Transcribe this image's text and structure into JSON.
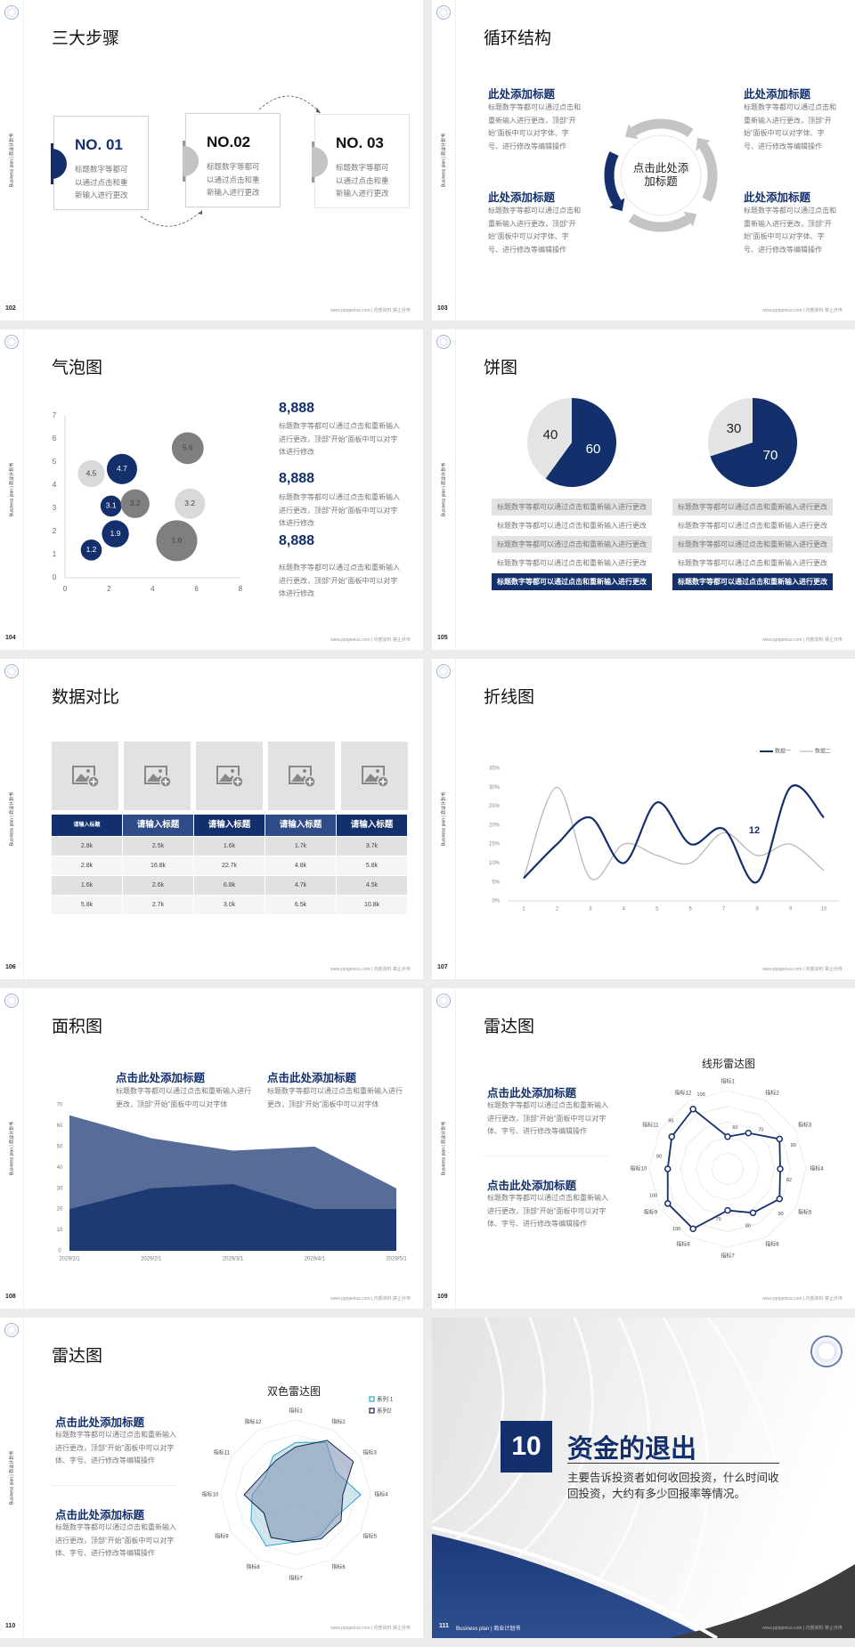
{
  "common": {
    "side_label": "Business plan | 商业计划书",
    "footer": "www.pptgenius.com | 内部资料 禁止外传"
  },
  "colors": {
    "navy": "#13306c",
    "mid_blue": "#2f4c87",
    "gray": "#7f7f7f",
    "light_gray": "#d9d9d9",
    "page_bg": "#ececec"
  },
  "s102": {
    "page": "102",
    "title": "三大步骤",
    "steps": [
      {
        "no": "NO. 01",
        "text": "标题数字等都可以通过点击和重新输入进行更改"
      },
      {
        "no": "NO.02",
        "text": "标题数字等都可以通过点击和重新输入进行更改"
      },
      {
        "no": "NO. 03",
        "text": "标题数字等都可以通过点击和重新输入进行更改"
      }
    ]
  },
  "s103": {
    "page": "103",
    "title": "循环结构",
    "center": "点击此处添加标题",
    "blocks": [
      {
        "heading": "此处添加标题",
        "text": "标题数字等都可以通过点击和重新输入进行更改，顶部“开始”面板中可以对字体、字号、进行修改等编辑操作"
      },
      {
        "heading": "此处添加标题",
        "text": "标题数字等都可以通过点击和重新输入进行更改，顶部“开始”面板中可以对字体、字号、进行修改等编辑操作"
      },
      {
        "heading": "此处添加标题",
        "text": "标题数字等都可以通过点击和重新输入进行更改，顶部“开始”面板中可以对字体、字号、进行修改等编辑操作"
      },
      {
        "heading": "此处添加标题",
        "text": "标题数字等都可以通过点击和重新输入进行更改，顶部“开始”面板中可以对字体、字号、进行修改等编辑操作"
      }
    ]
  },
  "s104": {
    "page": "104",
    "title": "气泡图",
    "stats": [
      {
        "value": "8,888",
        "text": "标题数字等都可以通过点击和重新输入进行更改，顶部“开始”面板中可以对字体进行修改"
      },
      {
        "value": "8,888",
        "text": "标题数字等都可以通过点击和重新输入进行更改，顶部“开始”面板中可以对字体进行修改"
      },
      {
        "value": "8,888",
        "text": "标题数字等都可以通过点击和重新输入进行更改，顶部“开始”面板中可以对字体进行修改"
      }
    ]
  },
  "s105": {
    "page": "105",
    "title": "饼图",
    "rows_left": [
      "标题数字等都可以通过点击和重新输入进行更改",
      "标题数字等都可以通过点击和重新输入进行更改",
      "标题数字等都可以通过点击和重新输入进行更改",
      "标题数字等都可以通过点击和重新输入进行更改",
      "标题数字等都可以通过点击和重新输入进行更改"
    ],
    "rows_right": [
      "标题数字等都可以通过点击和重新输入进行更改",
      "标题数字等都可以通过点击和重新输入进行更改",
      "标题数字等都可以通过点击和重新输入进行更改",
      "标题数字等都可以通过点击和重新输入进行更改",
      "标题数字等都可以通过点击和重新输入进行更改"
    ]
  },
  "s106": {
    "page": "106",
    "title": "数据对比",
    "headers": [
      "请输入标题",
      "请输入标题",
      "请输入标题",
      "请输入标题",
      "请输入标题"
    ],
    "rows": [
      [
        "2.8k",
        "2.5k",
        "1.6k",
        "1.7k",
        "3.7k"
      ],
      [
        "2.8k",
        "16.8k",
        "22.7k",
        "4.8k",
        "5.8k"
      ],
      [
        "1.6k",
        "2.6k",
        "6.8k",
        "4.7k",
        "4.5k"
      ],
      [
        "5.8k",
        "2.7k",
        "3.0k",
        "6.5k",
        "10.8k"
      ]
    ]
  },
  "s107": {
    "page": "107",
    "title": "折线图"
  },
  "s108": {
    "page": "108",
    "title": "面积图",
    "blocks": [
      {
        "heading": "点击此处添加标题",
        "text": "标题数字等都可以通过点击和重新输入进行更改，顶部“开始”面板中可以对字体"
      },
      {
        "heading": "点击此处添加标题",
        "text": "标题数字等都可以通过点击和重新输入进行更改，顶部“开始”面板中可以对字体"
      }
    ]
  },
  "s109": {
    "page": "109",
    "title": "雷达图",
    "blocks": [
      {
        "heading": "点击此处添加标题",
        "text": "标题数字等都可以通过点击和重新输入进行更改，顶部“开始”面板中可以对字体、字号、进行修改等编辑操作"
      },
      {
        "heading": "点击此处添加标题",
        "text": "标题数字等都可以通过点击和重新输入进行更改，顶部“开始”面板中可以对字体、字号、进行修改等编辑操作"
      }
    ]
  },
  "s110": {
    "page": "110",
    "title": "雷达图",
    "blocks": [
      {
        "heading": "点击此处添加标题",
        "text": "标题数字等都可以通过点击和重新输入进行更改，顶部“开始”面板中可以对字体、字号、进行修改等编辑操作"
      },
      {
        "heading": "点击此处添加标题",
        "text": "标题数字等都可以通过点击和重新输入进行更改，顶部“开始”面板中可以对字体、字号、进行修改等编辑操作"
      }
    ]
  },
  "s111": {
    "page": "111",
    "number": "10",
    "title": "资金的退出",
    "text": "主要告诉投资者如何收回投资，什么时间收回投资，大约有多少回报率等情况。",
    "footer_left": "Business plan | 商业计划书"
  },
  "chart_data": [
    {
      "type": "scatter",
      "subtype": "bubble",
      "xlim": [
        0,
        8
      ],
      "ylim": [
        0,
        7
      ],
      "xticks": [
        "0",
        "2",
        "4",
        "6",
        "8"
      ],
      "yticks": [
        "0",
        "1",
        "2",
        "3",
        "4",
        "5",
        "6",
        "7"
      ],
      "grid": false,
      "points": [
        {
          "x": 1.2,
          "y": 1.2,
          "size": 1.4,
          "label": "1.2",
          "color": "#13306c"
        },
        {
          "x": 2.3,
          "y": 1.9,
          "size": 2.3,
          "label": "1.9",
          "color": "#13306c"
        },
        {
          "x": 2.1,
          "y": 3.1,
          "size": 1.4,
          "label": "3.1",
          "color": "#13306c"
        },
        {
          "x": 3.2,
          "y": 3.2,
          "size": 2.6,
          "label": "3.2",
          "color": "#7f7f7f"
        },
        {
          "x": 1.2,
          "y": 4.5,
          "size": 2.3,
          "label": "4.5",
          "color": "#d9d9d9"
        },
        {
          "x": 2.6,
          "y": 4.7,
          "size": 2.9,
          "label": "4.7",
          "color": "#13306c"
        },
        {
          "x": 5.6,
          "y": 5.6,
          "size": 3.2,
          "label": "5.6",
          "color": "#7f7f7f"
        },
        {
          "x": 5.7,
          "y": 3.2,
          "size": 2.9,
          "label": "3.2",
          "color": "#d9d9d9"
        },
        {
          "x": 5.1,
          "y": 1.6,
          "size": 5.3,
          "label": "1.6",
          "color": "#7f7f7f"
        }
      ]
    },
    {
      "type": "pie",
      "slices": [
        {
          "label": "60",
          "value": 60,
          "color": "#13306c"
        },
        {
          "label": "40",
          "value": 40,
          "color": "#e4e4e4"
        }
      ]
    },
    {
      "type": "pie",
      "slices": [
        {
          "label": "70",
          "value": 70,
          "color": "#13306c"
        },
        {
          "label": "30",
          "value": 30,
          "color": "#e4e4e4"
        }
      ]
    },
    {
      "type": "line",
      "smooth": true,
      "categories": [
        "1",
        "2",
        "3",
        "4",
        "5",
        "6",
        "7",
        "8",
        "9",
        "10"
      ],
      "ylim": [
        0,
        35
      ],
      "yticks": [
        "0%",
        "5%",
        "10%",
        "15%",
        "20%",
        "25%",
        "30%",
        "35%"
      ],
      "legend": "top-right",
      "annotation": "12",
      "series": [
        {
          "name": "数据一",
          "color": "#13306c",
          "values": [
            6,
            15,
            22,
            10,
            26,
            15,
            19,
            5,
            30,
            22
          ]
        },
        {
          "name": "数据二",
          "color": "#b8b8b8",
          "values": [
            6,
            30,
            6,
            15,
            12,
            10,
            18,
            12,
            15,
            8
          ]
        }
      ]
    },
    {
      "type": "area",
      "categories": [
        "2029/1/1",
        "2029/2/1",
        "2029/3/1",
        "2029/4/1",
        "2029/5/1"
      ],
      "ylim": [
        0,
        70
      ],
      "yticks": [
        "0",
        "10",
        "20",
        "30",
        "40",
        "50",
        "60",
        "70"
      ],
      "series": [
        {
          "color": "#586c98",
          "values": [
            65,
            54,
            48,
            50,
            30
          ]
        },
        {
          "color": "#1e3a74",
          "values": [
            20,
            30,
            32,
            20,
            20
          ]
        }
      ]
    },
    {
      "type": "radar",
      "title": "线形雷达图",
      "axes": [
        "指标1",
        "指标2",
        "指标3",
        "指标4",
        "指标5",
        "指标6",
        "指标7",
        "指标8",
        "指标9",
        "指标10",
        "指标11",
        "指标12"
      ],
      "series": [
        {
          "color": "#13306c",
          "values": [
            60,
            70,
            90,
            82,
            90,
            80,
            70,
            100,
            100,
            90,
            95,
            100
          ]
        }
      ]
    },
    {
      "type": "radar",
      "title": "双色雷达图",
      "axes": [
        "指标1",
        "指标2",
        "指标3",
        "指标4",
        "指标5",
        "指标6",
        "指标7",
        "指标8",
        "指标9",
        "指标10",
        "指标11",
        "指标12"
      ],
      "rlim": [
        0,
        100
      ],
      "legend": "top-right",
      "series": [
        {
          "name": "系列 1",
          "color": "#2aa3c9",
          "fill": "#a9cfe0",
          "values": [
            70,
            81,
            62,
            87,
            61,
            64,
            63,
            79,
            69,
            58,
            47,
            60
          ]
        },
        {
          "name": "系列2",
          "color": "#13264f",
          "fill": "#7d8fb0",
          "values": [
            64,
            84,
            89,
            63,
            70,
            68,
            63,
            66,
            49,
            69,
            52,
            53
          ]
        }
      ]
    }
  ]
}
